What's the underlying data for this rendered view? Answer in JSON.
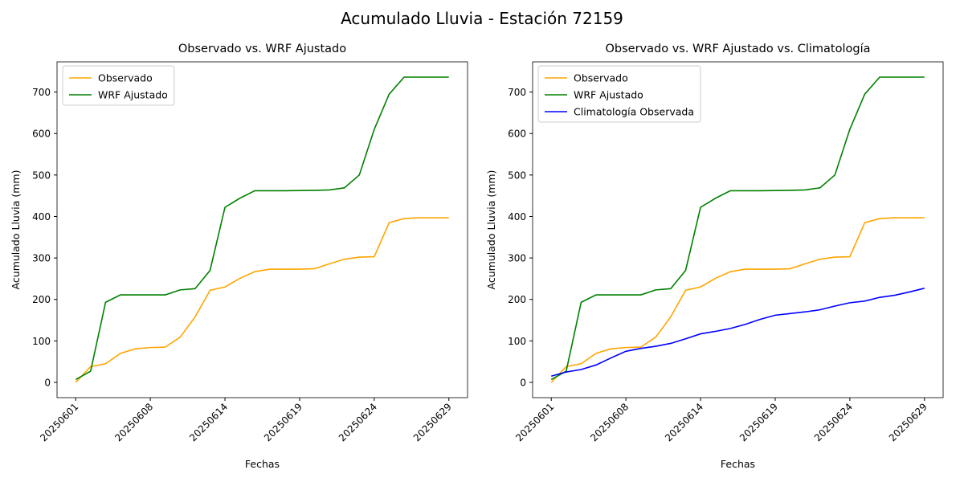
{
  "title": "Acumulado Lluvia - Estación 72159",
  "chart_data": [
    {
      "type": "line",
      "title": "Observado vs. WRF Ajustado",
      "x_label": "Fechas",
      "y_label": "Acumulado Lluvia (mm)",
      "categories": [
        "20250601",
        null,
        null,
        null,
        null,
        "20250608",
        null,
        null,
        null,
        null,
        "20250614",
        null,
        null,
        null,
        null,
        "20250619",
        null,
        null,
        null,
        null,
        "20250624",
        null,
        null,
        null,
        null,
        "20250629"
      ],
      "series": [
        {
          "name": "Observado",
          "color": "#FFA500",
          "values": [
            0,
            38,
            45,
            70,
            81,
            84,
            85,
            109,
            158,
            222,
            230,
            251,
            267,
            273,
            273,
            273,
            274,
            286,
            297,
            302,
            303,
            385,
            395,
            397,
            397,
            397
          ]
        },
        {
          "name": "WRF Ajustado",
          "color": "#008000",
          "values": [
            7,
            27,
            193,
            211,
            211,
            211,
            211,
            223,
            226,
            270,
            422,
            444,
            462,
            462,
            462,
            462.5,
            463,
            464,
            469,
            500,
            610,
            695,
            736,
            736,
            736,
            736
          ]
        }
      ],
      "ylim": [
        -36.8,
        772.8
      ],
      "yticks": [
        0,
        100,
        200,
        300,
        400,
        500,
        600,
        700
      ],
      "legend": "upper left"
    },
    {
      "type": "line",
      "title": "Observado vs. WRF Ajustado vs. Climatología",
      "x_label": "Fechas",
      "y_label": "Acumulado Lluvia (mm)",
      "categories": [
        "20250601",
        null,
        null,
        null,
        null,
        "20250608",
        null,
        null,
        null,
        null,
        "20250614",
        null,
        null,
        null,
        null,
        "20250619",
        null,
        null,
        null,
        null,
        "20250624",
        null,
        null,
        null,
        null,
        "20250629"
      ],
      "series": [
        {
          "name": "Observado",
          "color": "#FFA500",
          "values": [
            0,
            38,
            45,
            70,
            81,
            84,
            85,
            109,
            158,
            222,
            230,
            251,
            267,
            273,
            273,
            273,
            274,
            286,
            297,
            302,
            303,
            385,
            395,
            397,
            397,
            397
          ]
        },
        {
          "name": "WRF Ajustado",
          "color": "#008000",
          "values": [
            7,
            27,
            193,
            211,
            211,
            211,
            211,
            223,
            226,
            270,
            422,
            444,
            462,
            462,
            462,
            462.5,
            463,
            464,
            469,
            500,
            610,
            695,
            736,
            736,
            736,
            736
          ]
        },
        {
          "name": "Climatología Observada",
          "color": "#0000FF",
          "values": [
            15,
            25,
            31,
            42,
            59,
            75,
            82,
            87,
            94,
            105,
            117,
            123,
            130,
            140,
            152,
            162,
            166,
            170,
            175,
            184,
            192,
            196,
            205,
            210,
            218,
            227
          ]
        }
      ],
      "ylim": [
        -36.8,
        772.8
      ],
      "yticks": [
        0,
        100,
        200,
        300,
        400,
        500,
        600,
        700
      ],
      "legend": "upper left"
    }
  ]
}
